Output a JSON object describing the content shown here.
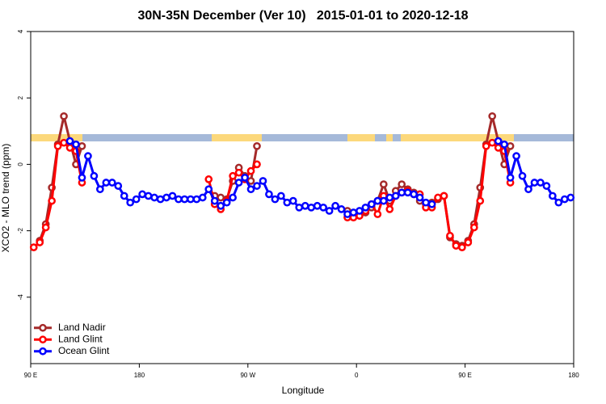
{
  "chart_data": {
    "type": "line",
    "title": "30N-35N December (Ver 10)   2015-01-01 to 2020-12-18",
    "xlabel": "Longitude",
    "ylabel": "XCO2 - MLO trend (ppm)",
    "xlim": [
      90,
      540
    ],
    "ylim": [
      -6,
      4
    ],
    "xticks": [
      {
        "value": 90,
        "label": "90 E"
      },
      {
        "value": 180,
        "label": "180"
      },
      {
        "value": 270,
        "label": "90 W"
      },
      {
        "value": 360,
        "label": "0"
      },
      {
        "value": 450,
        "label": "90 E"
      },
      {
        "value": 540,
        "label": "180"
      }
    ],
    "yticks": [
      4,
      2,
      0,
      -2,
      -4
    ],
    "legend": "bottom-left",
    "x": [
      92.5,
      97.5,
      102.5,
      107.5,
      112.5,
      117.5,
      122.5,
      127.5,
      132.5,
      137.5,
      142.5,
      147.5,
      152.5,
      157.5,
      162.5,
      167.5,
      172.5,
      177.5,
      182.5,
      187.5,
      192.5,
      197.5,
      202.5,
      207.5,
      212.5,
      217.5,
      222.5,
      227.5,
      232.5,
      237.5,
      242.5,
      247.5,
      252.5,
      257.5,
      262.5,
      267.5,
      272.5,
      277.5,
      282.5,
      287.5,
      292.5,
      297.5,
      302.5,
      307.5,
      312.5,
      317.5,
      322.5,
      327.5,
      332.5,
      337.5,
      342.5,
      347.5,
      352.5,
      357.5,
      362.5,
      367.5,
      372.5,
      377.5,
      382.5,
      387.5,
      392.5,
      397.5,
      402.5,
      407.5,
      412.5,
      417.5,
      422.5,
      427.5,
      432.5,
      437.5,
      442.5,
      447.5,
      452.5,
      457.5,
      462.5,
      467.5,
      472.5,
      477.5,
      482.5,
      487.5,
      492.5,
      497.5,
      502.5,
      507.5,
      512.5,
      517.5,
      522.5,
      527.5,
      532.5,
      537.5
    ],
    "series": [
      {
        "name": "Land Nadir",
        "color": "#a52a2a",
        "values": [
          null,
          -2.3,
          -1.8,
          -0.7,
          0.6,
          1.45,
          0.7,
          0.0,
          0.55,
          null,
          null,
          null,
          null,
          null,
          null,
          null,
          null,
          null,
          null,
          null,
          null,
          null,
          null,
          null,
          null,
          null,
          null,
          null,
          null,
          null,
          -0.95,
          -1.0,
          -1.05,
          -0.5,
          -0.1,
          -0.35,
          -0.5,
          0.55,
          null,
          null,
          null,
          null,
          null,
          null,
          null,
          null,
          null,
          null,
          null,
          null,
          null,
          null,
          -1.4,
          -1.55,
          -1.5,
          -1.45,
          -1.3,
          -1.1,
          -0.6,
          -1.1,
          -0.8,
          -0.6,
          -0.75,
          -0.85,
          -1.1,
          -1.2,
          -1.15,
          -1.05,
          -0.95,
          -2.2,
          -2.4,
          -2.45,
          -2.3,
          -1.8,
          -0.7,
          0.6,
          1.45,
          0.7,
          0.0,
          0.55,
          null,
          null,
          null,
          null,
          null,
          null,
          null,
          null,
          null,
          null
        ]
      },
      {
        "name": "Land Glint",
        "color": "#ff0000",
        "values": [
          -2.5,
          -2.35,
          -1.9,
          -1.1,
          0.55,
          0.65,
          0.5,
          0.4,
          -0.55,
          null,
          null,
          null,
          null,
          null,
          null,
          null,
          null,
          null,
          null,
          null,
          null,
          null,
          null,
          null,
          null,
          null,
          null,
          null,
          null,
          -0.45,
          -1.2,
          -1.35,
          -1.1,
          -0.35,
          -0.25,
          -0.45,
          -0.2,
          0.0,
          null,
          null,
          null,
          null,
          null,
          null,
          null,
          null,
          null,
          null,
          null,
          null,
          null,
          null,
          -1.6,
          -1.6,
          -1.55,
          -1.4,
          -1.2,
          -1.5,
          -0.95,
          -1.35,
          -0.95,
          -0.85,
          -0.8,
          -0.9,
          -0.9,
          -1.3,
          -1.3,
          -1.0,
          -0.95,
          -2.15,
          -2.45,
          -2.5,
          -2.35,
          -1.9,
          -1.1,
          0.55,
          0.65,
          0.5,
          0.4,
          -0.55,
          null,
          null,
          null,
          null,
          null,
          null,
          null,
          null,
          null,
          null
        ]
      },
      {
        "name": "Ocean Glint",
        "color": "#0000ff",
        "values": [
          null,
          null,
          null,
          null,
          null,
          null,
          0.7,
          0.6,
          -0.4,
          0.25,
          -0.35,
          -0.75,
          -0.55,
          -0.55,
          -0.65,
          -0.95,
          -1.15,
          -1.05,
          -0.9,
          -0.95,
          -1.0,
          -1.05,
          -1.0,
          -0.95,
          -1.05,
          -1.05,
          -1.05,
          -1.05,
          -1.0,
          -0.75,
          -1.1,
          -1.25,
          -1.15,
          -1.0,
          -0.55,
          -0.4,
          -0.75,
          -0.65,
          -0.5,
          -0.9,
          -1.05,
          -0.95,
          -1.15,
          -1.1,
          -1.3,
          -1.25,
          -1.3,
          -1.25,
          -1.3,
          -1.4,
          -1.25,
          -1.35,
          -1.5,
          -1.45,
          -1.4,
          -1.3,
          -1.2,
          -1.1,
          -1.1,
          -1.0,
          -0.95,
          -0.85,
          -0.85,
          -0.9,
          -1.0,
          -1.15,
          -1.2,
          null,
          null,
          null,
          null,
          null,
          null,
          null,
          null,
          null,
          null,
          0.7,
          0.6,
          -0.4,
          0.25,
          -0.35,
          -0.75,
          -0.55,
          -0.55,
          -0.65,
          -0.95,
          -1.15,
          -1.05,
          -1.0
        ]
      }
    ]
  }
}
